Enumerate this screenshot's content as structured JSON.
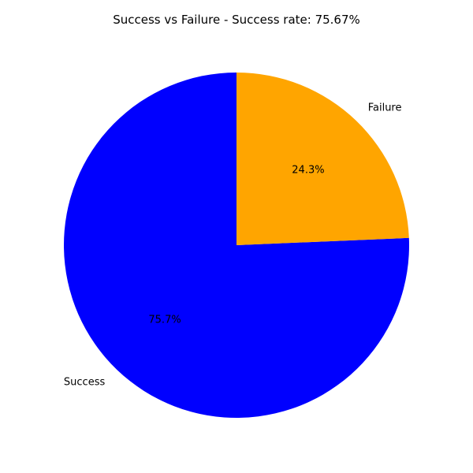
{
  "chart_data": {
    "type": "pie",
    "title": "Success vs Failure - Success rate: 75.67%",
    "start_angle_deg": 90,
    "direction": "counterclockwise",
    "slices": [
      {
        "label": "Success",
        "value": 75.67,
        "pct_text": "75.7%",
        "color": "#0000ff"
      },
      {
        "label": "Failure",
        "value": 24.33,
        "pct_text": "24.3%",
        "color": "#ffa500"
      }
    ]
  }
}
